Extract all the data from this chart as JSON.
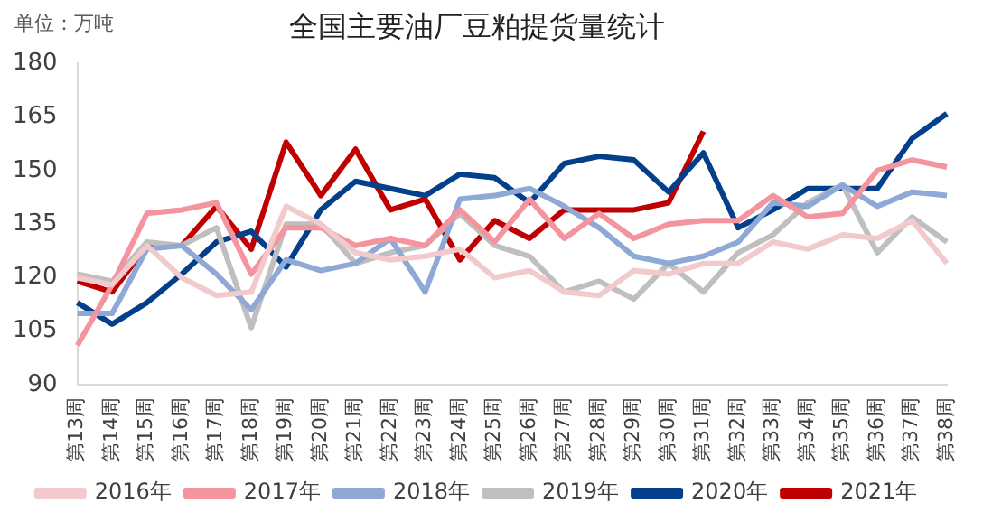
{
  "chart_data": {
    "type": "line",
    "title": "全国主要油厂豆粕提货量统计",
    "annotations": [
      "单位：万吨"
    ],
    "categories": [
      "第13周",
      "第14周",
      "第15周",
      "第16周",
      "第17周",
      "第18周",
      "第19周",
      "第20周",
      "第21周",
      "第22周",
      "第23周",
      "第24周",
      "第25周",
      "第26周",
      "第27周",
      "第28周",
      "第29周",
      "第30周",
      "第31周",
      "第32周",
      "第33周",
      "第34周",
      "第35周",
      "第36周",
      "第37周",
      "第38周"
    ],
    "series": [
      {
        "name": "2016年",
        "color": "#f2c9cc",
        "values": [
          120,
          118,
          129,
          120,
          115,
          116,
          140,
          135,
          127,
          125,
          126,
          128,
          120,
          122,
          116,
          115,
          122,
          121,
          124,
          124,
          130,
          128,
          132,
          131,
          136,
          124
        ]
      },
      {
        "name": "2017年",
        "color": "#f4949e",
        "values": [
          101,
          118,
          138,
          139,
          141,
          121,
          134,
          134,
          129,
          131,
          129,
          139,
          130,
          142,
          131,
          138,
          131,
          135,
          136,
          136,
          143,
          137,
          138,
          150,
          153,
          151
        ]
      },
      {
        "name": "2018年",
        "color": "#8ea9d6",
        "values": [
          110,
          110,
          128,
          129,
          121,
          111,
          125,
          122,
          124,
          131,
          116,
          142,
          143,
          145,
          140,
          134,
          126,
          124,
          126,
          130,
          141,
          140,
          146,
          140,
          144,
          143
        ]
      },
      {
        "name": "2019年",
        "color": "#bfbfbf",
        "values": [
          121,
          119,
          130,
          129,
          134,
          106,
          135,
          135,
          124,
          127,
          129,
          138,
          129,
          126,
          116,
          119,
          114,
          124,
          116,
          127,
          132,
          141,
          146,
          127,
          137,
          130
        ]
      },
      {
        "name": "2020年",
        "color": "#033f8a",
        "values": [
          113,
          107,
          113,
          121,
          130,
          133,
          123,
          139,
          147,
          145,
          143,
          149,
          148,
          141,
          152,
          154,
          153,
          144,
          155,
          134,
          139,
          145,
          145,
          145,
          159,
          166
        ]
      },
      {
        "name": "2021年",
        "color": "#c00000",
        "values": [
          119,
          116,
          129,
          129,
          140,
          128,
          158,
          143,
          156,
          139,
          142,
          125,
          136,
          131,
          139,
          139,
          139,
          141,
          161,
          null,
          null,
          null,
          null,
          null,
          null,
          null
        ]
      }
    ],
    "ylim": [
      90,
      180
    ],
    "yticks": [
      90,
      105,
      120,
      135,
      150,
      165,
      180
    ],
    "grid": false,
    "legend": "bottom",
    "marker": "none",
    "line_style": "solid"
  }
}
